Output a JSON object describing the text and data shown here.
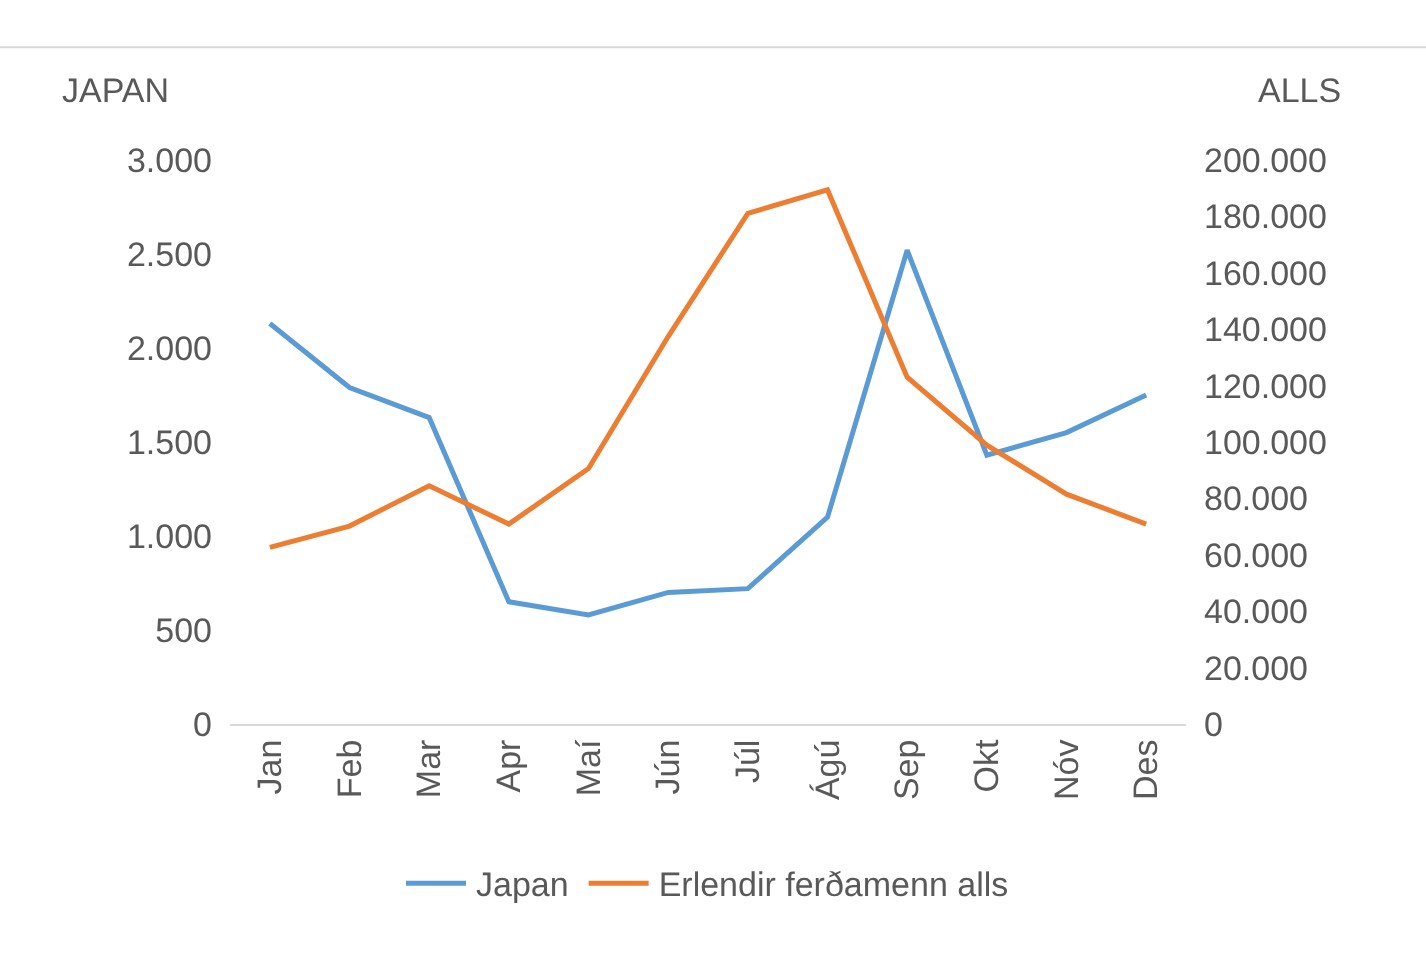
{
  "chart_data": {
    "type": "line",
    "ylabel": "JAPAN",
    "y2label": "ALLS",
    "categories": [
      "Jan",
      "Feb",
      "Mar",
      "Apr",
      "Maí",
      "Jún",
      "Júl",
      "Ágú",
      "Sep",
      "Okt",
      "Nóv",
      "Des"
    ],
    "series": [
      {
        "name": "Japan",
        "color": "#5b9bd5",
        "values": [
          2130,
          1790,
          1630,
          650,
          580,
          700,
          720,
          1100,
          2520,
          1430,
          1550,
          1750
        ]
      },
      {
        "name": "Erlendir ferðamenn alls",
        "color": "#ed7d31",
        "axis": "y2",
        "values": [
          62600,
          70200,
          84500,
          70900,
          90600,
          137400,
          181100,
          189400,
          123000,
          98900,
          81500,
          70900
        ]
      }
    ],
    "ylim": [
      0,
      3000
    ],
    "yticks": [
      0,
      500,
      {
        "value": 1000,
        "label": "1.000"
      },
      {
        "value": 1500,
        "label": "1.500"
      },
      {
        "value": 2000,
        "label": "2.000"
      },
      {
        "value": 2500,
        "label": "2.500"
      },
      {
        "value": 3000,
        "label": "3.000"
      }
    ],
    "y2lim": [
      0,
      200000
    ],
    "y2ticks": [
      0,
      {
        "value": 20000,
        "label": "20.000"
      },
      {
        "value": 40000,
        "label": "40.000"
      },
      {
        "value": 60000,
        "label": "60.000"
      },
      {
        "value": 80000,
        "label": "80.000"
      },
      {
        "value": 100000,
        "label": "100.000"
      },
      {
        "value": 120000,
        "label": "120.000"
      },
      {
        "value": 140000,
        "label": "140.000"
      },
      {
        "value": 160000,
        "label": "160.000"
      },
      {
        "value": 180000,
        "label": "180.000"
      },
      {
        "value": 200000,
        "label": "200.000"
      }
    ],
    "legend": "bottom",
    "marker": "none",
    "line_style": "solid"
  }
}
